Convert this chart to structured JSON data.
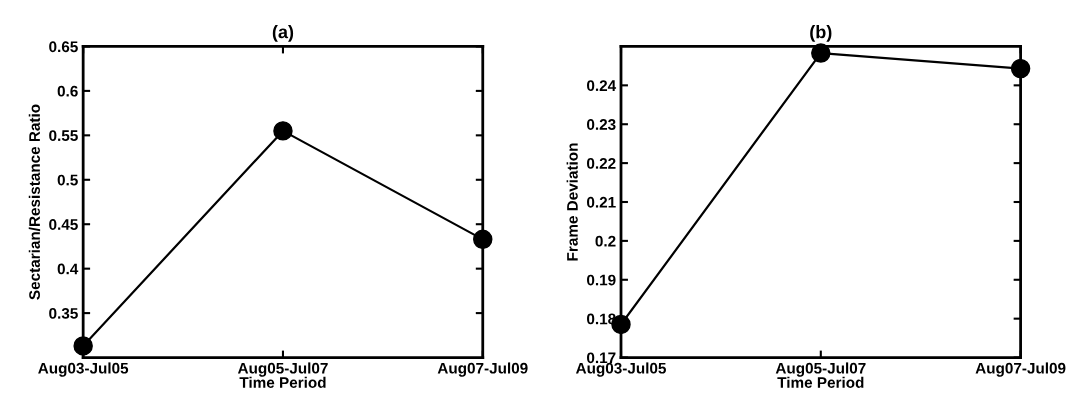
{
  "chart_data": [
    {
      "type": "line",
      "title": "(a)",
      "xlabel": "Time Period",
      "ylabel": "Sectarian/Resistance Ratio",
      "categories": [
        "Aug03-Jul05",
        "Aug05-Jul07",
        "Aug07-Jul09"
      ],
      "series": [
        {
          "color": "#000000",
          "values": [
            0.313,
            0.555,
            0.433
          ]
        }
      ],
      "ylim": [
        0.3,
        0.65
      ],
      "yticks": [
        0.35,
        0.4,
        0.45,
        0.5,
        0.55,
        0.6,
        0.65
      ],
      "marker": "circle",
      "line_style": "solid",
      "grid": false,
      "legend": false
    },
    {
      "type": "line",
      "title": "(b)",
      "xlabel": "Time Period",
      "ylabel": "Frame Deviation",
      "categories": [
        "Aug03-Jul05",
        "Aug05-Jul07",
        "Aug07-Jul09"
      ],
      "series": [
        {
          "color": "#000000",
          "values": [
            0.1785,
            0.2483,
            0.2443
          ]
        }
      ],
      "ylim": [
        0.17,
        0.25
      ],
      "yticks": [
        0.17,
        0.18,
        0.19,
        0.2,
        0.21,
        0.22,
        0.23,
        0.24
      ],
      "marker": "circle",
      "line_style": "solid",
      "grid": false,
      "legend": false
    }
  ]
}
